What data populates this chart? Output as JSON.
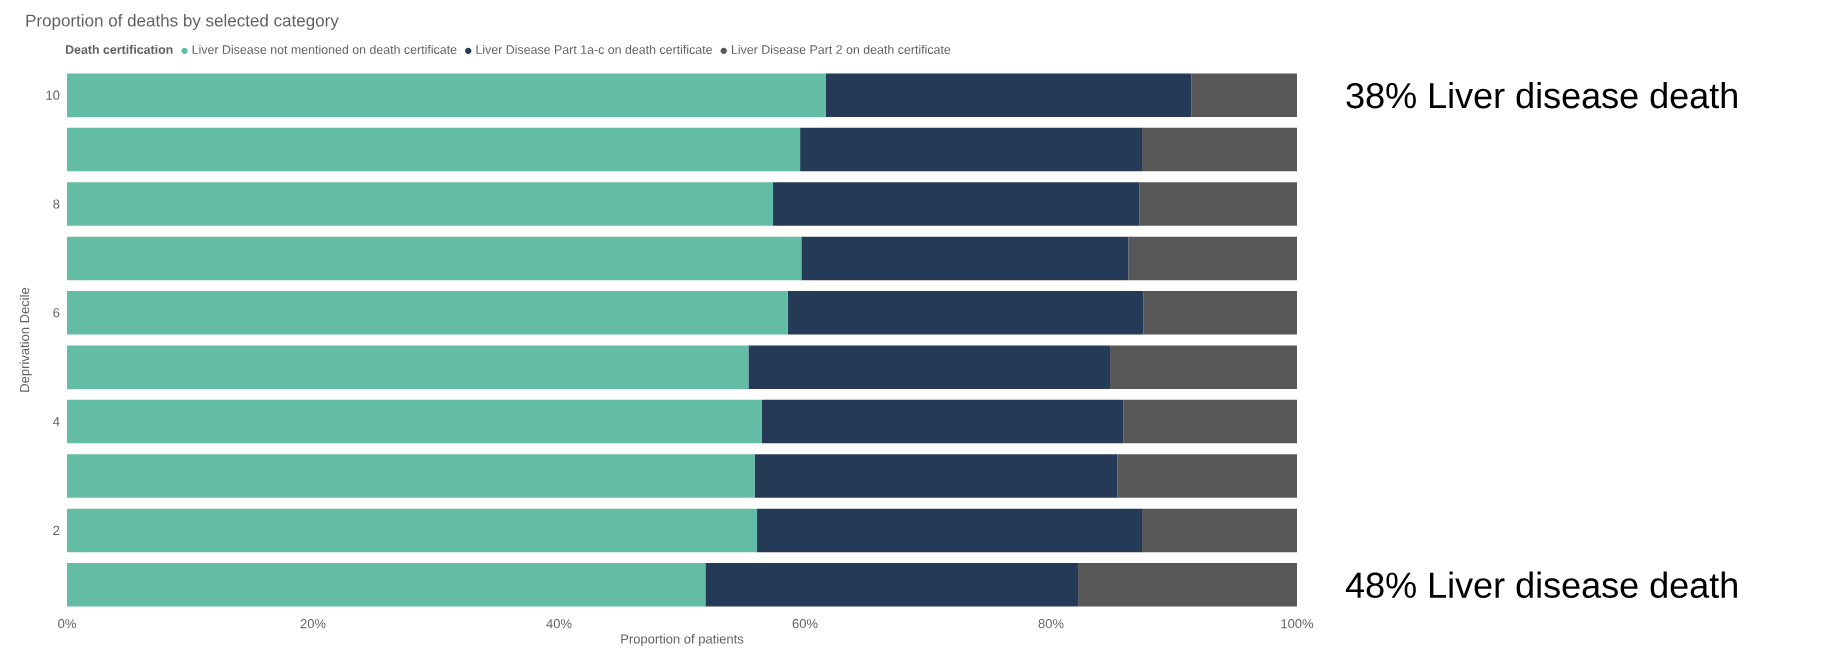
{
  "chart_data": {
    "type": "bar",
    "orientation": "horizontal",
    "stacked": true,
    "title": "Proportion of deaths by selected category",
    "legend_title": "Death certification",
    "legend": "top left",
    "xlabel": "Proportion of patients",
    "ylabel": "Deprivation Decile",
    "categories": [
      "10",
      null,
      "8",
      null,
      "6",
      null,
      "4",
      null,
      "2",
      null
    ],
    "series": [
      {
        "name": "Liver Disease not mentioned on death certificate",
        "color": "#62bda4",
        "values": [
          61.7,
          59.6,
          57.4,
          59.7,
          58.6,
          55.4,
          56.5,
          55.9,
          56.1,
          51.9
        ]
      },
      {
        "name": "Liver Disease Part 1a-c on death certificate",
        "color": "#243a57",
        "values": [
          29.7,
          27.8,
          29.8,
          26.6,
          28.9,
          29.4,
          29.4,
          29.5,
          31.3,
          30.3
        ]
      },
      {
        "name": "Liver Disease Part 2 on death certificate",
        "color": "#585858",
        "values": [
          8.6,
          12.6,
          12.8,
          13.7,
          12.5,
          15.2,
          14.1,
          14.6,
          12.6,
          17.8
        ]
      }
    ],
    "xlim": [
      0,
      100
    ],
    "xticks": [
      {
        "value": 0,
        "label": "0%"
      },
      {
        "value": 20,
        "label": "20%"
      },
      {
        "value": 40,
        "label": "40%"
      },
      {
        "value": 60,
        "label": "60%"
      },
      {
        "value": 80,
        "label": "80%"
      },
      {
        "value": 100,
        "label": "100%"
      }
    ],
    "annotations": [
      "38% Liver disease death",
      "48% Liver disease death"
    ]
  }
}
